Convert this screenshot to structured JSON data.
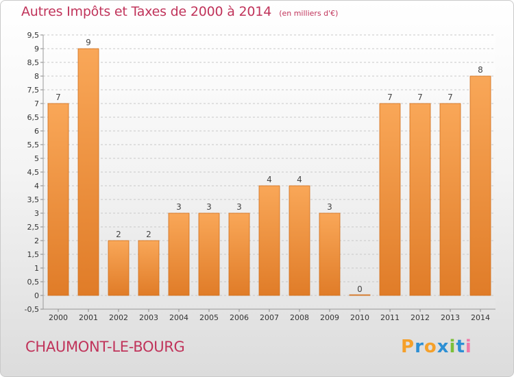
{
  "title": {
    "main": "Autres Impôts et Taxes de 2000 à 2014",
    "unit": "(en milliers d'€)"
  },
  "commune": "CHAUMONT-LE-BOURG",
  "logo": {
    "text": "Proxiti",
    "letters": [
      "P",
      "r",
      "o",
      "x",
      "i",
      "t",
      "i"
    ],
    "colors": [
      "#f5a02a",
      "#2d8fd4",
      "#f5a02a",
      "#2d8fd4",
      "#7bbf3a",
      "#2d8fd4",
      "#f07aa8"
    ]
  },
  "colors": {
    "bar_light": "#f9a758",
    "bar_dark": "#e07c28",
    "bar_edge": "#d06e1c",
    "grid": "#c8c8c8",
    "accent": "#c0335a"
  },
  "chart_data": {
    "type": "bar",
    "title": "Autres Impôts et Taxes de 2000 à 2014",
    "xlabel": "",
    "ylabel": "",
    "categories": [
      "2000",
      "2001",
      "2002",
      "2003",
      "2004",
      "2005",
      "2006",
      "2007",
      "2008",
      "2009",
      "2010",
      "2011",
      "2012",
      "2013",
      "2014"
    ],
    "values": [
      7,
      9,
      2,
      2,
      3,
      3,
      3,
      4,
      4,
      3,
      0,
      7,
      7,
      7,
      8
    ],
    "data_labels": [
      "7",
      "9",
      "2",
      "2",
      "3",
      "3",
      "3",
      "4",
      "4",
      "3",
      "0",
      "7",
      "7",
      "7",
      "8"
    ],
    "ylim": [
      -0.5,
      9.5
    ],
    "yticks": [
      "-0,5",
      "0",
      "0,5",
      "1",
      "1,5",
      "2",
      "2,5",
      "3",
      "3,5",
      "4",
      "4,5",
      "5",
      "5,5",
      "6",
      "6,5",
      "7",
      "7,5",
      "8",
      "8,5",
      "9",
      "9,5"
    ],
    "grid": true
  }
}
